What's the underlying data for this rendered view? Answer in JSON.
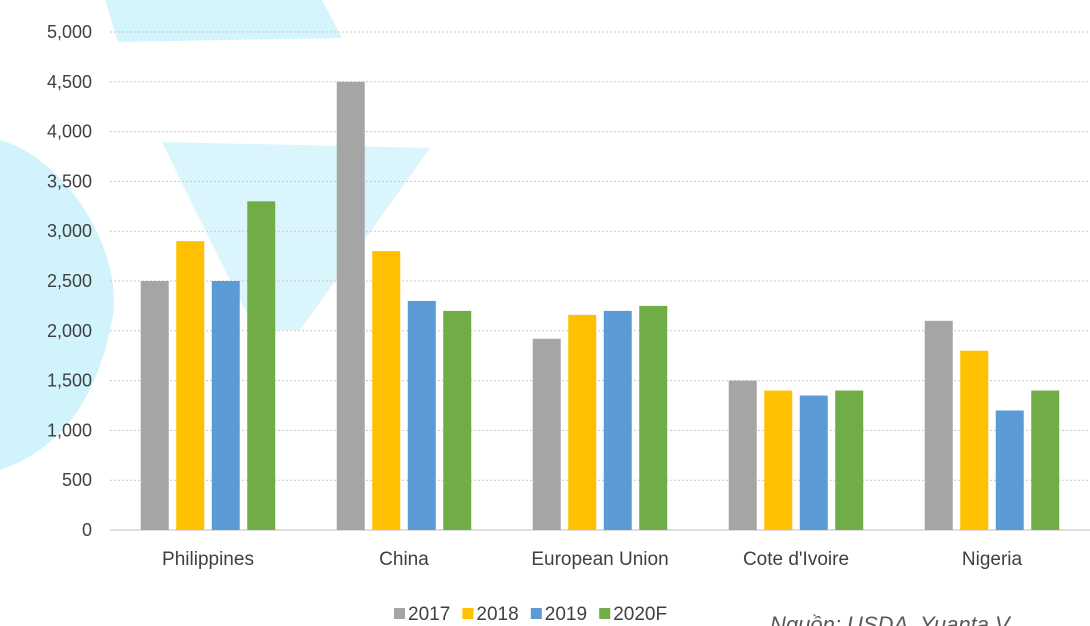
{
  "chart_data": {
    "type": "bar",
    "categories": [
      "Philippines",
      "China",
      "European Union",
      "Cote d'Ivoire",
      "Nigeria"
    ],
    "series": [
      {
        "name": "2017",
        "color": "#a5a5a5",
        "values": [
          2500,
          4500,
          1920,
          1500,
          2100
        ]
      },
      {
        "name": "2018",
        "color": "#ffc000",
        "values": [
          2900,
          2800,
          2160,
          1400,
          1800
        ]
      },
      {
        "name": "2019",
        "color": "#5b9bd5",
        "values": [
          2500,
          2300,
          2200,
          1350,
          1200
        ]
      },
      {
        "name": "2020F",
        "color": "#70ad47",
        "values": [
          3300,
          2200,
          2250,
          1400,
          1400
        ]
      }
    ],
    "ylim": [
      0,
      5000
    ],
    "yticks": [
      "0",
      "500",
      "1,000",
      "1,500",
      "2,000",
      "2,500",
      "3,000",
      "3,500",
      "4,000",
      "4,500",
      "5,000"
    ],
    "ylabel": "",
    "xlabel": "",
    "grid": true,
    "legend_position": "bottom"
  },
  "source_note": "Nguồn: USDA, Yuanta V"
}
